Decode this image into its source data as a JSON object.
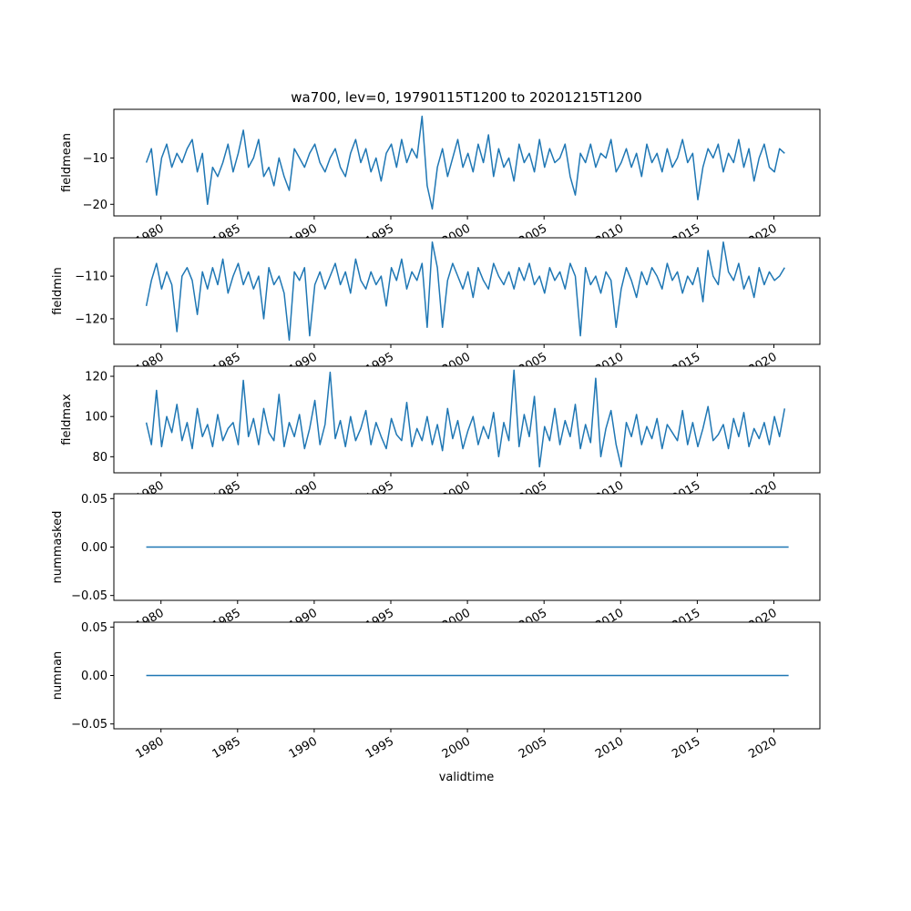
{
  "chart_data": {
    "type": "line",
    "title": "wa700, lev=0, 19790115T1200 to 20201215T1200",
    "xlabel": "validtime",
    "x_start": 1979.04,
    "x_step": 0.3333,
    "xlim": [
      1977.0,
      2023.0
    ],
    "x_ticks": [
      "1980",
      "1985",
      "1990",
      "1995",
      "2000",
      "2005",
      "2010",
      "2015",
      "2020"
    ],
    "x_tick_values": [
      1980,
      1985,
      1990,
      1995,
      2000,
      2005,
      2010,
      2015,
      2020
    ],
    "line_color": "#1f77b4",
    "panels": [
      {
        "ylabel": "fieldmean",
        "ylim": [
          -22.5,
          0.5
        ],
        "y_ticks": [
          "−10",
          "−20"
        ],
        "y_tick_values": [
          -10,
          -20
        ],
        "values": [
          -11,
          -8,
          -18,
          -10,
          -7,
          -12,
          -9,
          -11,
          -8,
          -6,
          -13,
          -9,
          -20,
          -12,
          -14,
          -11,
          -7,
          -13,
          -9,
          -4,
          -12,
          -10,
          -6,
          -14,
          -12,
          -16,
          -10,
          -14,
          -17,
          -8,
          -10,
          -12,
          -9,
          -7,
          -11,
          -13,
          -10,
          -8,
          -12,
          -14,
          -9,
          -6,
          -11,
          -8,
          -13,
          -10,
          -15,
          -9,
          -7,
          -12,
          -6,
          -11,
          -8,
          -10,
          -1,
          -16,
          -21,
          -12,
          -8,
          -14,
          -10,
          -6,
          -12,
          -9,
          -13,
          -7,
          -11,
          -5,
          -14,
          -8,
          -12,
          -10,
          -15,
          -7,
          -11,
          -9,
          -13,
          -6,
          -12,
          -8,
          -11,
          -10,
          -7,
          -14,
          -18,
          -9,
          -11,
          -7,
          -12,
          -9,
          -10,
          -6,
          -13,
          -11,
          -8,
          -12,
          -9,
          -14,
          -7,
          -11,
          -9,
          -13,
          -8,
          -12,
          -10,
          -6,
          -11,
          -9,
          -19,
          -12,
          -8,
          -10,
          -7,
          -13,
          -9,
          -11,
          -6,
          -12,
          -8,
          -15,
          -10,
          -7,
          -12,
          -13,
          -8,
          -9
        ]
      },
      {
        "ylabel": "fieldmin",
        "ylim": [
          -126,
          -101
        ],
        "y_ticks": [
          "−110",
          "−120"
        ],
        "y_tick_values": [
          -110,
          -120
        ],
        "values": [
          -117,
          -111,
          -107,
          -113,
          -109,
          -112,
          -123,
          -110,
          -108,
          -111,
          -119,
          -109,
          -113,
          -108,
          -112,
          -106,
          -114,
          -110,
          -107,
          -112,
          -109,
          -113,
          -110,
          -120,
          -108,
          -112,
          -110,
          -114,
          -125,
          -109,
          -111,
          -108,
          -124,
          -112,
          -109,
          -113,
          -110,
          -107,
          -112,
          -109,
          -114,
          -106,
          -111,
          -113,
          -109,
          -112,
          -110,
          -117,
          -108,
          -111,
          -106,
          -113,
          -109,
          -111,
          -107,
          -122,
          -102,
          -108,
          -122,
          -111,
          -107,
          -110,
          -113,
          -109,
          -115,
          -108,
          -111,
          -113,
          -107,
          -110,
          -112,
          -109,
          -113,
          -108,
          -111,
          -107,
          -112,
          -110,
          -114,
          -108,
          -111,
          -109,
          -113,
          -107,
          -110,
          -124,
          -108,
          -112,
          -110,
          -114,
          -109,
          -111,
          -122,
          -113,
          -108,
          -111,
          -115,
          -109,
          -112,
          -108,
          -110,
          -113,
          -107,
          -111,
          -109,
          -114,
          -110,
          -112,
          -108,
          -116,
          -104,
          -110,
          -112,
          -102,
          -109,
          -111,
          -107,
          -113,
          -110,
          -115,
          -108,
          -112,
          -109,
          -111,
          -110,
          -108
        ]
      },
      {
        "ylabel": "fieldmax",
        "ylim": [
          72,
          125
        ],
        "y_ticks": [
          "120",
          "100",
          "80"
        ],
        "y_tick_values": [
          120,
          100,
          80
        ],
        "values": [
          97,
          86,
          113,
          85,
          100,
          92,
          106,
          88,
          97,
          84,
          104,
          90,
          96,
          85,
          101,
          88,
          94,
          97,
          86,
          118,
          90,
          99,
          86,
          104,
          92,
          88,
          111,
          85,
          97,
          90,
          101,
          84,
          94,
          108,
          86,
          96,
          122,
          89,
          98,
          85,
          100,
          88,
          94,
          103,
          86,
          97,
          90,
          84,
          99,
          91,
          88,
          107,
          85,
          94,
          88,
          100,
          86,
          96,
          83,
          104,
          89,
          98,
          84,
          93,
          100,
          86,
          95,
          89,
          102,
          80,
          97,
          88,
          123,
          85,
          101,
          90,
          110,
          75,
          95,
          88,
          104,
          86,
          98,
          90,
          106,
          84,
          96,
          87,
          119,
          80,
          94,
          103,
          86,
          75,
          97,
          90,
          101,
          86,
          95,
          89,
          99,
          84,
          96,
          92,
          88,
          103,
          86,
          97,
          85,
          94,
          105,
          88,
          91,
          96,
          84,
          99,
          90,
          102,
          85,
          94,
          89,
          97,
          86,
          100,
          90,
          104
        ]
      },
      {
        "ylabel": "nummasked",
        "ylim": [
          -0.055,
          0.055
        ],
        "y_ticks": [
          "0.05",
          "0.00",
          "−0.05"
        ],
        "y_tick_values": [
          0.05,
          0,
          -0.05
        ],
        "values": "constant 0"
      },
      {
        "ylabel": "numnan",
        "ylim": [
          -0.055,
          0.055
        ],
        "y_ticks": [
          "0.05",
          "0.00",
          "−0.05"
        ],
        "y_tick_values": [
          0.05,
          0,
          -0.05
        ],
        "values": "constant 0"
      }
    ]
  }
}
